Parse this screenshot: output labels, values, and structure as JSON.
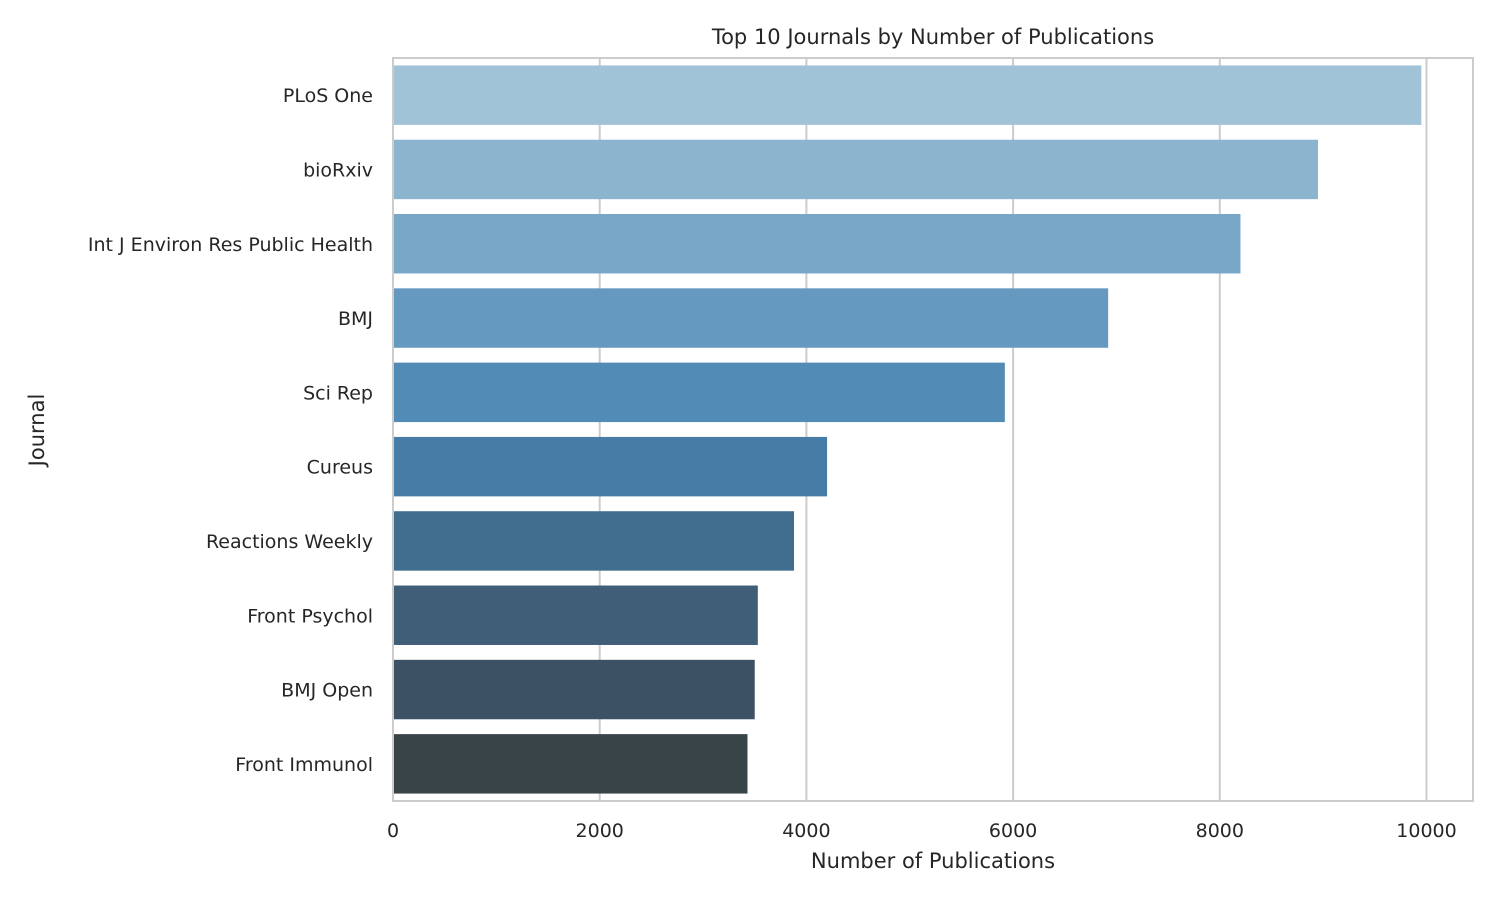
{
  "chart_data": {
    "type": "bar",
    "orientation": "horizontal",
    "title": "Top 10 Journals by Number of Publications",
    "xlabel": "Number of Publications",
    "ylabel": "Journal",
    "xlim": [
      0,
      10450
    ],
    "xticks": [
      0,
      2000,
      4000,
      6000,
      8000,
      10000
    ],
    "grid": true,
    "categories": [
      "PLoS One",
      "bioRxiv",
      "Int J Environ Res Public Health",
      "BMJ",
      "Sci Rep",
      "Cureus",
      "Reactions Weekly",
      "Front Psychol",
      "BMJ Open",
      "Front Immunol"
    ],
    "values": [
      9950,
      8950,
      8200,
      6920,
      5920,
      4200,
      3880,
      3530,
      3500,
      3430
    ],
    "colors": [
      "#a1c3d8",
      "#8cb4cf",
      "#79a7c7",
      "#6699bf",
      "#528bb6",
      "#467ca5",
      "#416d8e",
      "#405e77",
      "#3c5264",
      "#394449"
    ]
  }
}
